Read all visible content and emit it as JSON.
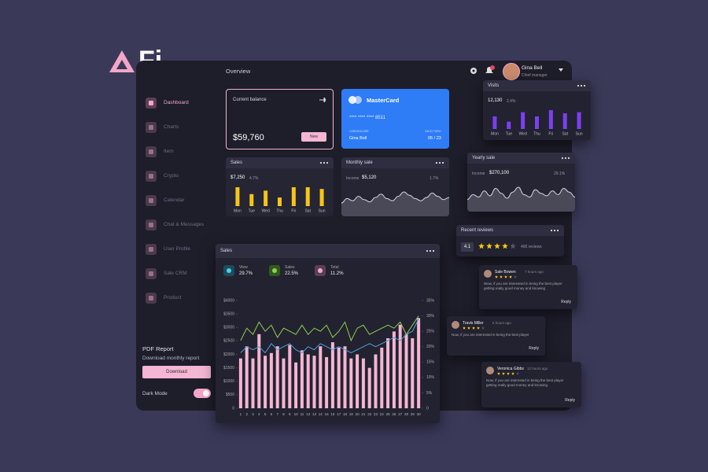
{
  "logo": "Fi",
  "header": {
    "title": "Overview",
    "user_name": "Gina Bell",
    "user_role": "Chief manager"
  },
  "sidebar": {
    "items": [
      "Dashboard",
      "Charts",
      "Item",
      "Crypto",
      "Calendar",
      "Chat & Messages",
      "User Profile",
      "Sale CRM",
      "Product"
    ],
    "pdf_title": "PDF Report",
    "pdf_subtitle": "Download monthly report",
    "download_button": "Download",
    "dark_mode": "Dark Mode"
  },
  "balance_card": {
    "title": "Current balance",
    "amount": "$59,760",
    "button": "New"
  },
  "credit_card": {
    "brand": "MasterCard",
    "number": "****  ****  ****  8511",
    "holder_label": "CARDHOLDER",
    "holder": "Gina Bell",
    "valid_label": "VALID THRU",
    "valid": "05 / 23"
  },
  "sales_mini": {
    "title": "Sales",
    "amount": "$7,250",
    "change": "4.7%",
    "categories": [
      "Mon",
      "Tue",
      "Wed",
      "Thu",
      "Fri",
      "Sat",
      "Sun"
    ],
    "values": [
      22,
      14,
      18,
      10,
      22,
      22,
      20
    ],
    "color": "#f5c518"
  },
  "monthly_sale": {
    "title": "Monthly sale",
    "label": "Income",
    "amount": "$5,120",
    "change": "1.7%",
    "values": [
      10,
      14,
      12,
      16,
      13,
      11,
      15,
      18,
      14,
      12,
      16,
      20,
      17,
      14,
      12,
      15,
      19,
      16,
      13,
      15
    ]
  },
  "visits": {
    "title": "Visits",
    "amount": "12,130",
    "change": "2.4%",
    "categories": [
      "Mon",
      "Tue",
      "Wed",
      "Thu",
      "Fri",
      "Sat",
      "Sun"
    ],
    "values": [
      12,
      7,
      16,
      12,
      18,
      15,
      16
    ],
    "color": "#7b3ff2"
  },
  "yearly_sale": {
    "title": "Yearly sale",
    "label": "Income",
    "amount": "$270,100",
    "change": "29.1%",
    "values": [
      8,
      12,
      10,
      15,
      11,
      17,
      13,
      9,
      14,
      18,
      12,
      10,
      16,
      13,
      11,
      15,
      12,
      17,
      14,
      10
    ]
  },
  "recent_reviews": {
    "title": "Recent reviews",
    "rating": "4.1",
    "count": "400 reviews",
    "reviews": [
      {
        "name": "Sale Bowen",
        "time": "7 hours ago",
        "text": "Wow, if you are interested in being the best player getting really good money and knowing",
        "reply": "Reply"
      },
      {
        "name": "Travis Miller",
        "time": "5 hours ago",
        "text": "Now, if you are interested in being the best player",
        "reply": "Reply"
      },
      {
        "name": "Veronica Gibbs",
        "time": "12 hours ago",
        "text": "Now, if you are interested in being the best player getting really good money and knowing",
        "reply": "Reply"
      }
    ]
  },
  "chart_data": {
    "type": "bar",
    "title": "Sales",
    "stats": [
      {
        "label": "View",
        "value": "29.7%"
      },
      {
        "label": "Sales",
        "value": "22.5%"
      },
      {
        "label": "Total",
        "value": "11.2%"
      }
    ],
    "categories": [
      "1",
      "2",
      "3",
      "4",
      "5",
      "6",
      "7",
      "8",
      "9",
      "10",
      "11",
      "12",
      "13",
      "14",
      "15",
      "16",
      "17",
      "18",
      "19",
      "20",
      "21",
      "22",
      "23",
      "24",
      "25",
      "26",
      "27",
      "28",
      "29",
      "30"
    ],
    "series": [
      {
        "type": "bar",
        "color": "#f4b6d2",
        "values": [
          1850,
          2300,
          1850,
          2750,
          1950,
          2050,
          2300,
          1850,
          2350,
          1700,
          2150,
          2000,
          1950,
          2300,
          1900,
          2450,
          2250,
          2300,
          1850,
          2000,
          1850,
          1500,
          2000,
          2250,
          2600,
          2850,
          3100,
          2750,
          2600,
          3350
        ]
      },
      {
        "type": "line",
        "axis": "y2",
        "color": "#8fd14f",
        "values": [
          22,
          26,
          24,
          28,
          25,
          27,
          23,
          26,
          25,
          24,
          27,
          24,
          26,
          25,
          27,
          23,
          25,
          28,
          22,
          26,
          27,
          24,
          25,
          26,
          27,
          26,
          28,
          24,
          27,
          30
        ]
      },
      {
        "type": "line",
        "axis": "y2",
        "color": "#4aa3d8",
        "values": [
          18,
          20,
          19,
          20,
          18,
          21,
          19,
          20,
          21,
          19,
          18,
          20,
          19,
          21,
          20,
          19,
          20,
          19,
          18,
          19,
          20,
          21,
          20,
          21,
          22,
          23,
          22,
          24,
          25,
          29
        ]
      }
    ],
    "ylim": [
      0,
      4000
    ],
    "yticks": [
      0,
      {
        "value": 500,
        "label": "$500"
      },
      {
        "value": 1000,
        "label": "$1000"
      },
      {
        "value": 1500,
        "label": "$1500"
      },
      {
        "value": 2000,
        "label": "$2000"
      },
      {
        "value": 2500,
        "label": "$2500"
      },
      {
        "value": 3000,
        "label": "$3000"
      },
      {
        "value": 3500,
        "label": "$3500"
      },
      {
        "value": 4000,
        "label": "$4000"
      }
    ],
    "y2lim": [
      0,
      35
    ],
    "y2ticks": [
      0,
      {
        "value": 5,
        "label": "5%"
      },
      {
        "value": 10,
        "label": "10%"
      },
      {
        "value": 15,
        "label": "15%"
      },
      {
        "value": 20,
        "label": "20%"
      },
      {
        "value": 25,
        "label": "25%"
      },
      {
        "value": 30,
        "label": "30%"
      },
      {
        "value": 35,
        "label": "35%"
      }
    ]
  }
}
